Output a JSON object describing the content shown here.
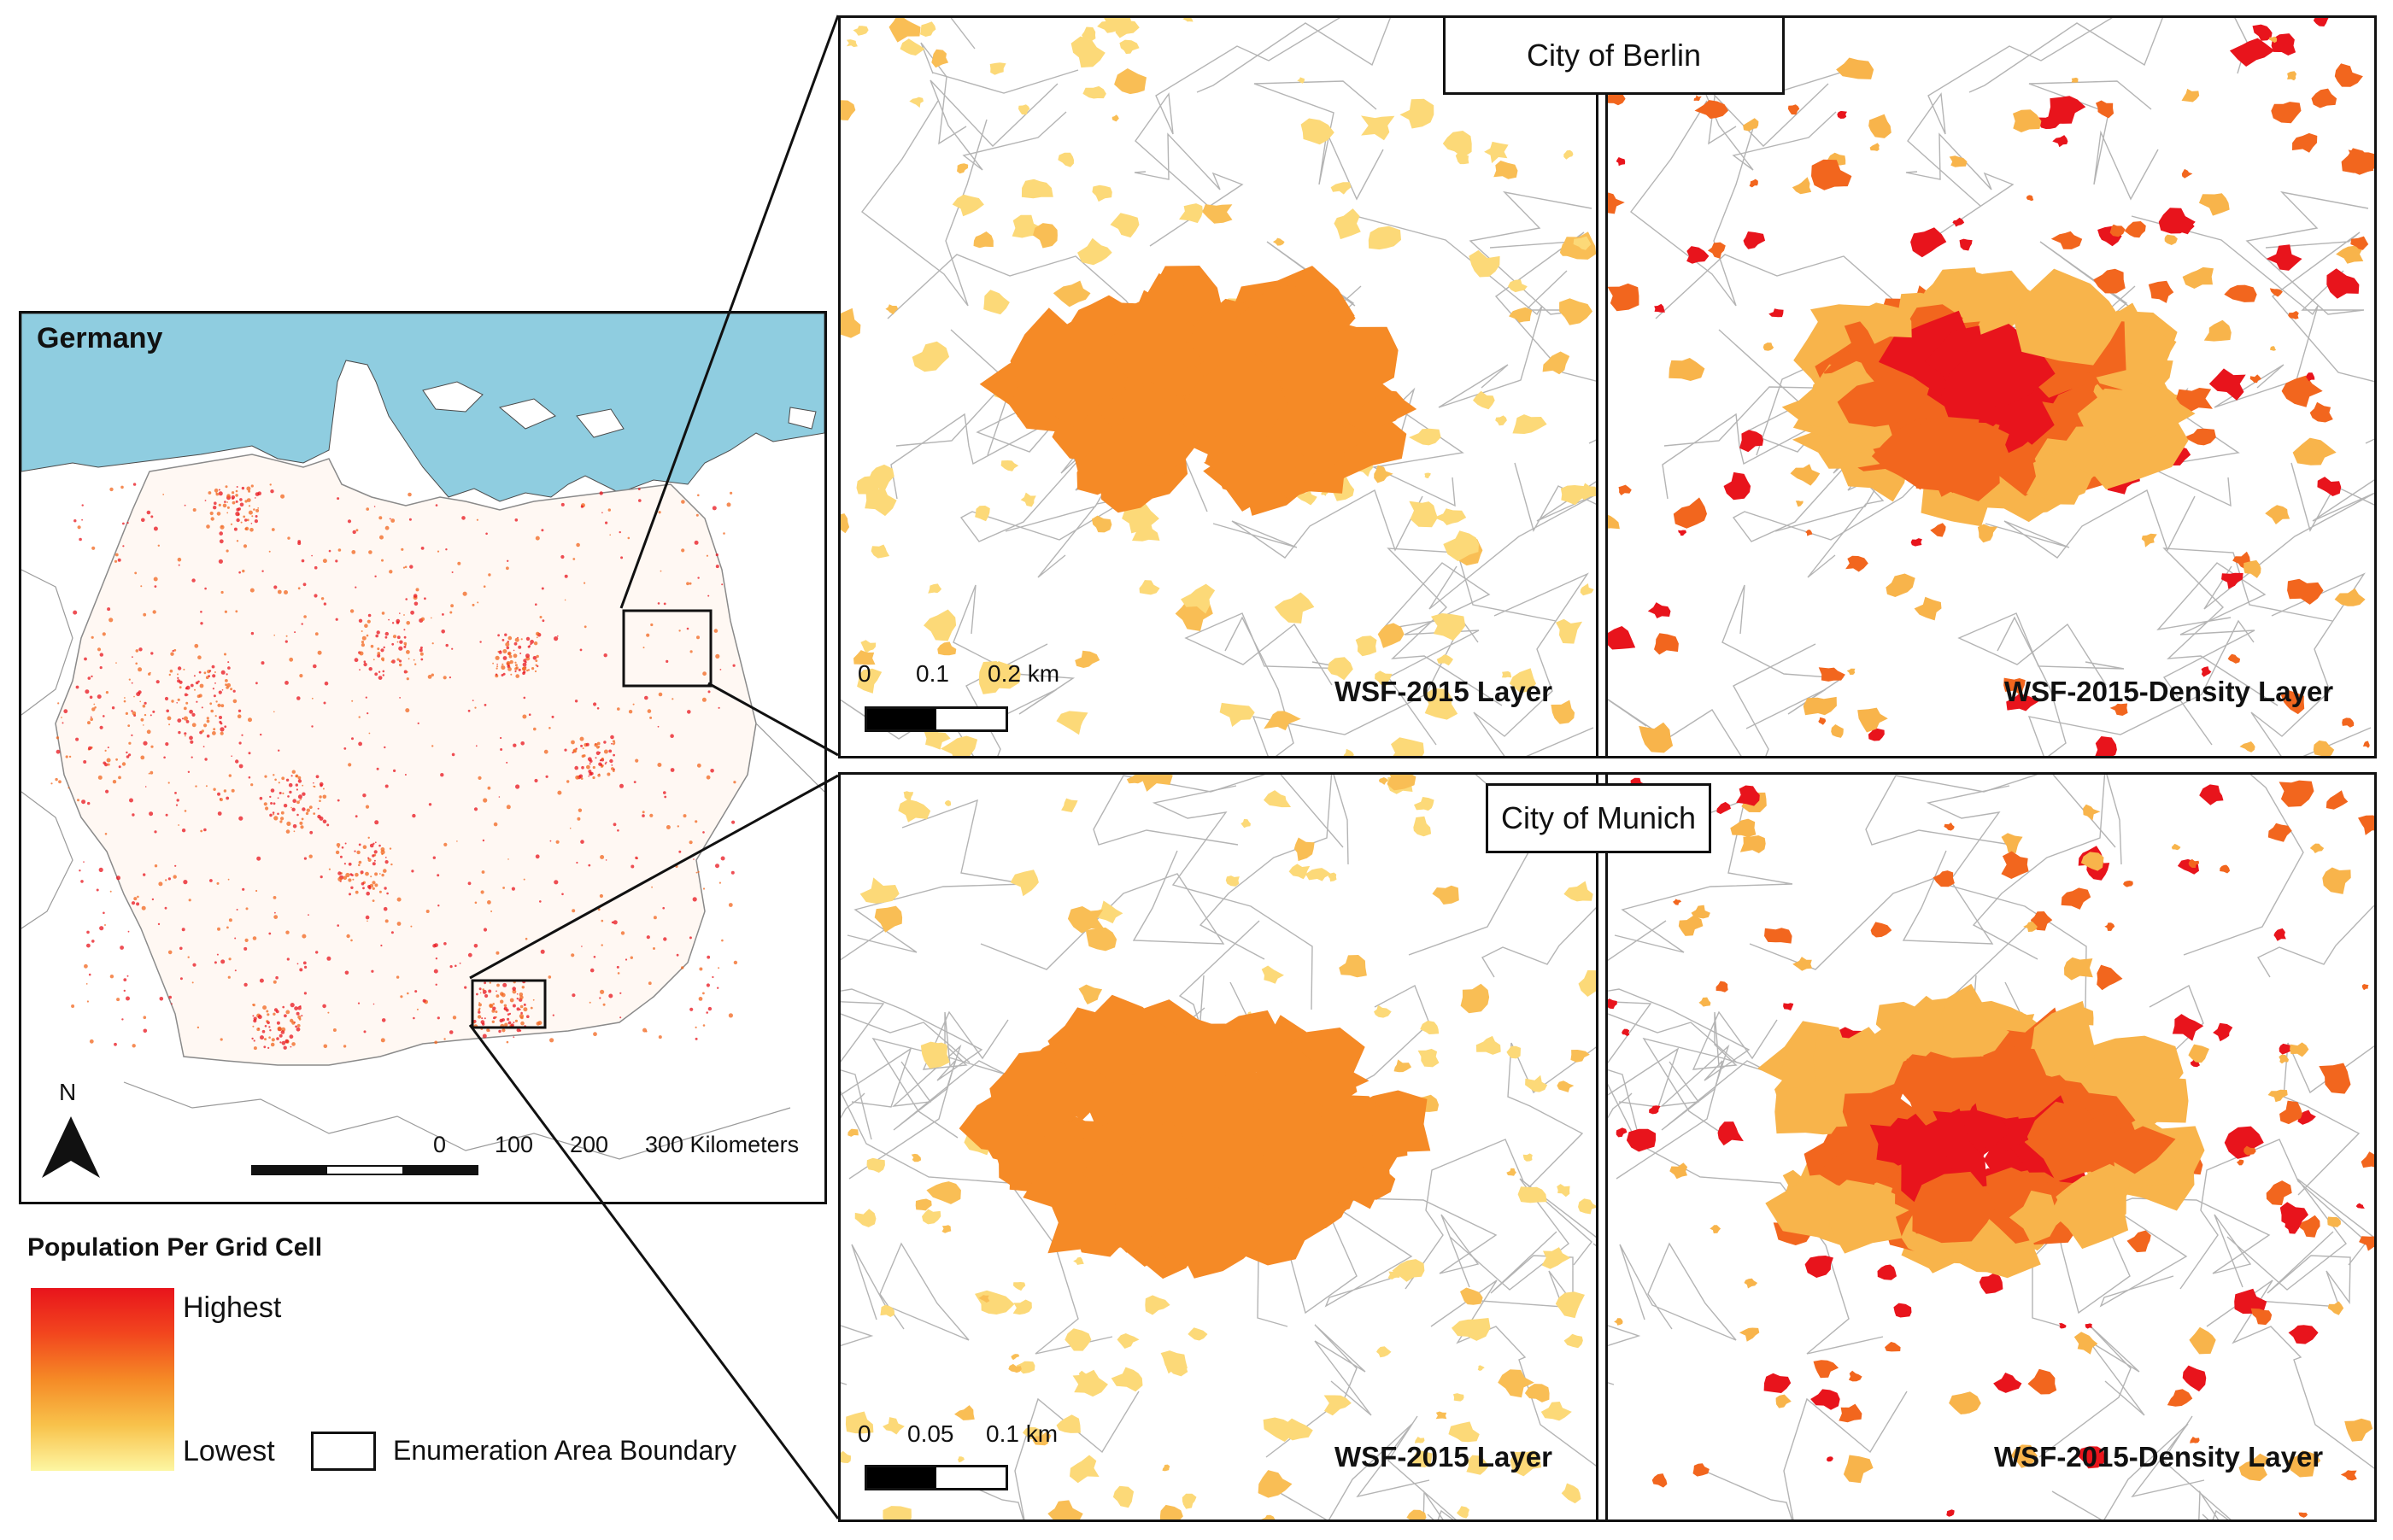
{
  "overview": {
    "title": "Germany",
    "north_label": "N",
    "scale_labels": [
      "0",
      "100",
      "200",
      "300 Kilometers"
    ],
    "sea_color": "#8fcde0",
    "land_color": "#ffffff"
  },
  "berlin": {
    "title": "City of Berlin",
    "left_label": "WSF-2015 Layer",
    "right_label": "WSF-2015-Density Layer",
    "scale_labels": [
      "0",
      "0.1",
      "0.2 km"
    ]
  },
  "munich": {
    "title": "City of Munich",
    "left_label": "WSF-2015 Layer",
    "right_label": "WSF-2015-Density Layer",
    "scale_labels": [
      "0",
      "0.05",
      "0.1 km"
    ]
  },
  "legend": {
    "title": "Population Per Grid Cell",
    "highest": "Highest",
    "lowest": "Lowest",
    "boundary_label": "Enumeration Area Boundary",
    "colors": [
      "#e8141c",
      "#f58a26",
      "#fdf6a2"
    ]
  },
  "palette": {
    "wsf_fill": "#f58a26",
    "wsf_light": "#fcd978",
    "density_high": "#e8141c",
    "density_mid": "#f2661e",
    "density_low": "#f8b44b",
    "boundary": "#b4b4b4"
  }
}
